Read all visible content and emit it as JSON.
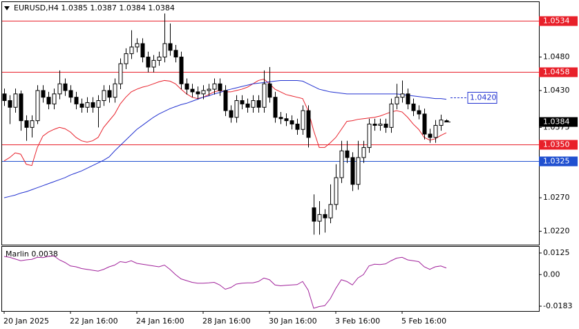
{
  "chart_data": [
    {
      "type": "candlestick",
      "title": "EURUSD,H4  1.0385 1.0387 1.0384 1.0384",
      "categories": [
        "20 Jan 2025",
        null,
        null,
        null,
        null,
        null,
        null,
        null,
        null,
        null,
        null,
        null,
        "22 Jan 16:00",
        null,
        null,
        null,
        null,
        null,
        null,
        null,
        null,
        null,
        null,
        null,
        "24 Jan 16:00",
        null,
        null,
        null,
        null,
        null,
        null,
        null,
        null,
        null,
        null,
        null,
        "28 Jan 16:00",
        null,
        null,
        null,
        null,
        null,
        null,
        null,
        null,
        null,
        null,
        null,
        "30 Jan 16:00",
        null,
        null,
        null,
        null,
        null,
        null,
        null,
        null,
        null,
        null,
        null,
        "3 Feb 16:00",
        null,
        null,
        null,
        null,
        null,
        null,
        null,
        null,
        null,
        null,
        null,
        "5 Feb 16:00",
        null,
        null,
        null,
        null,
        null,
        null,
        null,
        null
      ],
      "open": [
        1.0425,
        1.0415,
        1.0405,
        1.0425,
        1.0385,
        1.0375,
        1.0385,
        1.043,
        1.042,
        1.041,
        1.0425,
        1.044,
        1.043,
        1.042,
        1.041,
        1.0405,
        1.0412,
        1.0405,
        1.0415,
        1.043,
        1.042,
        1.044,
        1.047,
        1.0485,
        1.0495,
        1.05,
        1.048,
        1.0465,
        1.0475,
        1.048,
        1.05,
        1.049,
        1.048,
        1.044,
        1.0432,
        1.0428,
        1.0425,
        1.043,
        1.0432,
        1.044,
        1.043,
        1.04,
        1.039,
        1.0415,
        1.041,
        1.0405,
        1.0415,
        1.0405,
        1.044,
        1.042,
        1.039,
        1.0388,
        1.0385,
        1.038,
        1.0372,
        1.04,
        1.0255,
        1.0235,
        1.0245,
        1.024,
        1.026,
        1.03,
        1.034,
        1.033,
        1.029,
        1.033,
        1.0345,
        1.038,
        1.0378,
        1.038,
        1.0375,
        1.041,
        1.042,
        1.0425,
        1.041,
        1.04,
        1.0395,
        1.0365,
        1.036,
        1.0378,
        1.0385
      ],
      "high": [
        1.0433,
        1.0423,
        1.0433,
        1.043,
        1.0393,
        1.0393,
        1.0438,
        1.0438,
        1.0428,
        1.0433,
        1.046,
        1.0448,
        1.0438,
        1.0428,
        1.0418,
        1.042,
        1.042,
        1.0423,
        1.0438,
        1.0438,
        1.0448,
        1.0478,
        1.0493,
        1.052,
        1.0508,
        1.0508,
        1.0488,
        1.0483,
        1.0488,
        1.0545,
        1.053,
        1.0498,
        1.0488,
        1.0448,
        1.044,
        1.0436,
        1.0438,
        1.044,
        1.0448,
        1.0448,
        1.0438,
        1.0408,
        1.0423,
        1.0423,
        1.0418,
        1.0423,
        1.0423,
        1.046,
        1.0465,
        1.0428,
        1.0398,
        1.0396,
        1.0393,
        1.0388,
        1.0408,
        1.0408,
        1.0275,
        1.0265,
        1.0253,
        1.029,
        1.032,
        1.0355,
        1.0355,
        1.0338,
        1.0355,
        1.0355,
        1.0388,
        1.0388,
        1.0388,
        1.0388,
        1.0418,
        1.044,
        1.0445,
        1.0433,
        1.0418,
        1.0408,
        1.0403,
        1.0373,
        1.0386,
        1.0394,
        1.0387
      ],
      "low": [
        1.0407,
        1.038,
        1.0397,
        1.037,
        1.0355,
        1.036,
        1.038,
        1.0412,
        1.0402,
        1.0402,
        1.0417,
        1.0422,
        1.0412,
        1.0402,
        1.0397,
        1.0397,
        1.0397,
        1.0375,
        1.0407,
        1.0412,
        1.0412,
        1.0432,
        1.0462,
        1.0477,
        1.0487,
        1.0472,
        1.0457,
        1.0457,
        1.0467,
        1.0472,
        1.0482,
        1.0472,
        1.0432,
        1.0424,
        1.042,
        1.0417,
        1.0417,
        1.0422,
        1.0424,
        1.0422,
        1.0392,
        1.0382,
        1.0382,
        1.0402,
        1.0397,
        1.0397,
        1.0397,
        1.0397,
        1.0412,
        1.0382,
        1.038,
        1.0377,
        1.0372,
        1.0364,
        1.0364,
        1.0345,
        1.0215,
        1.0215,
        1.0218,
        1.0232,
        1.0252,
        1.0292,
        1.0322,
        1.028,
        1.0282,
        1.0322,
        1.0337,
        1.037,
        1.037,
        1.0367,
        1.0367,
        1.0402,
        1.0412,
        1.0402,
        1.0392,
        1.0387,
        1.0357,
        1.0352,
        1.0352,
        1.037,
        1.0384
      ],
      "close": [
        1.0415,
        1.0405,
        1.0425,
        1.0385,
        1.0375,
        1.0385,
        1.043,
        1.042,
        1.041,
        1.0425,
        1.044,
        1.043,
        1.042,
        1.041,
        1.0405,
        1.0412,
        1.0405,
        1.0415,
        1.043,
        1.042,
        1.044,
        1.047,
        1.0485,
        1.0495,
        1.05,
        1.048,
        1.0465,
        1.0475,
        1.048,
        1.05,
        1.049,
        1.048,
        1.044,
        1.0432,
        1.0428,
        1.0425,
        1.043,
        1.0432,
        1.044,
        1.043,
        1.04,
        1.039,
        1.0415,
        1.041,
        1.0405,
        1.0415,
        1.0405,
        1.044,
        1.042,
        1.039,
        1.0388,
        1.0385,
        1.038,
        1.0372,
        1.04,
        1.036,
        1.0235,
        1.0245,
        1.024,
        1.026,
        1.03,
        1.034,
        1.033,
        1.029,
        1.033,
        1.0345,
        1.038,
        1.0378,
        1.038,
        1.0375,
        1.041,
        1.042,
        1.0425,
        1.041,
        1.04,
        1.0395,
        1.0365,
        1.036,
        1.0378,
        1.0386,
        1.0384
      ],
      "up_color": "#ffffff",
      "down_color": "#000000",
      "overlays": [
        {
          "color": "#e8202a",
          "values": [
            1.0325,
            1.033,
            1.0337,
            1.0335,
            1.032,
            1.0318,
            1.0345,
            1.0362,
            1.0368,
            1.0372,
            1.0375,
            1.0373,
            1.0368,
            1.036,
            1.0355,
            1.0353,
            1.0355,
            1.036,
            1.0375,
            1.0385,
            1.0395,
            1.041,
            1.042,
            1.0428,
            1.0432,
            1.0435,
            1.0437,
            1.044,
            1.0443,
            1.0445,
            1.0444,
            1.044,
            1.0432,
            1.0425,
            1.042,
            1.0418,
            1.042,
            1.0424,
            1.0428,
            1.043,
            1.0428,
            1.0428,
            1.043,
            1.0432,
            1.0435,
            1.044,
            1.0445,
            1.0447,
            1.044,
            1.0432,
            1.0428,
            1.0424,
            1.0422,
            1.042,
            1.0418,
            1.04,
            1.037,
            1.0345,
            1.0345,
            1.0352,
            1.036,
            1.0372,
            1.0384,
            1.0385,
            1.0387,
            1.0388,
            1.0389,
            1.039,
            1.0392,
            1.0395,
            1.0398,
            1.04,
            1.0398,
            1.039,
            1.038,
            1.0372,
            1.036,
            1.0356,
            1.0358,
            1.0363,
            1.0367
          ]
        },
        {
          "color": "#2030d0",
          "values": [
            1.027,
            1.0272,
            1.0274,
            1.0277,
            1.0279,
            1.0282,
            1.0285,
            1.0288,
            1.0291,
            1.0294,
            1.0297,
            1.03,
            1.0304,
            1.0307,
            1.031,
            1.0314,
            1.0318,
            1.0322,
            1.0326,
            1.0331,
            1.034,
            1.0348,
            1.0356,
            1.0364,
            1.0372,
            1.0378,
            1.0384,
            1.039,
            1.0395,
            1.0399,
            1.0403,
            1.0406,
            1.0409,
            1.0411,
            1.0414,
            1.0417,
            1.042,
            1.0422,
            1.0425,
            1.0427,
            1.043,
            1.0432,
            1.0434,
            1.0436,
            1.0438,
            1.044,
            1.0441,
            1.0442,
            1.0443,
            1.0444,
            1.0445,
            1.0445,
            1.0445,
            1.0445,
            1.0444,
            1.044,
            1.0436,
            1.0432,
            1.043,
            1.0428,
            1.0427,
            1.0426,
            1.0425,
            1.0425,
            1.0425,
            1.0425,
            1.0425,
            1.0425,
            1.0425,
            1.0425,
            1.0425,
            1.0425,
            1.0424,
            1.0423,
            1.0422,
            1.0421,
            1.042,
            1.0419,
            1.0418,
            1.0418,
            1.0417
          ]
        }
      ],
      "levels": [
        {
          "value": 1.0534,
          "color": "#e8202a"
        },
        {
          "value": 1.0458,
          "color": "#e8202a"
        },
        {
          "value": 1.035,
          "label": "1.0350",
          "color": "#e8202a"
        },
        {
          "value": 1.0325,
          "color": "#2050d0"
        }
      ],
      "price_marker": {
        "value": 1.042,
        "label": "1.0420",
        "color": "#2030d0"
      },
      "last_price": 1.0384,
      "ylim": [
        1.02,
        1.0562
      ],
      "yticks": [
        {
          "value": 1.048,
          "label": "1.0480"
        },
        {
          "value": 1.043,
          "label": "1.0430"
        },
        1.0375,
        {
          "value": 1.027,
          "label": "1.0270"
        },
        {
          "value": 1.022,
          "label": "1.0220"
        }
      ]
    },
    {
      "type": "line",
      "title": "Marlin 0.0038",
      "color": "#a0209a",
      "values": [
        0.0105,
        0.01,
        0.009,
        0.008,
        0.0085,
        0.0088,
        0.01,
        0.0098,
        0.0105,
        0.0108,
        0.0085,
        0.007,
        0.005,
        0.0045,
        0.0035,
        0.003,
        0.0025,
        0.002,
        0.003,
        0.0045,
        0.0055,
        0.0075,
        0.007,
        0.008,
        0.0065,
        0.006,
        0.0055,
        0.005,
        0.0045,
        0.0055,
        0.003,
        0.0,
        -0.0025,
        -0.0035,
        -0.0045,
        -0.005,
        -0.005,
        -0.0048,
        -0.0045,
        -0.006,
        -0.0085,
        -0.0075,
        -0.0055,
        -0.005,
        -0.0048,
        -0.0048,
        -0.004,
        -0.002,
        -0.003,
        -0.006,
        -0.0065,
        -0.0062,
        -0.006,
        -0.0058,
        -0.004,
        -0.009,
        -0.0195,
        -0.0185,
        -0.018,
        -0.014,
        -0.008,
        -0.003,
        -0.004,
        -0.006,
        -0.002,
        0.0,
        0.005,
        0.006,
        0.0058,
        0.0062,
        0.008,
        0.0095,
        0.01,
        0.0085,
        0.008,
        0.0075,
        0.0045,
        0.003,
        0.0045,
        0.005,
        0.0038
      ],
      "ylim": [
        -0.0211,
        0.0161
      ],
      "yticks": [
        0.0125,
        {
          "value": 0,
          "label": "0.00"
        },
        -0.0183
      ]
    }
  ]
}
